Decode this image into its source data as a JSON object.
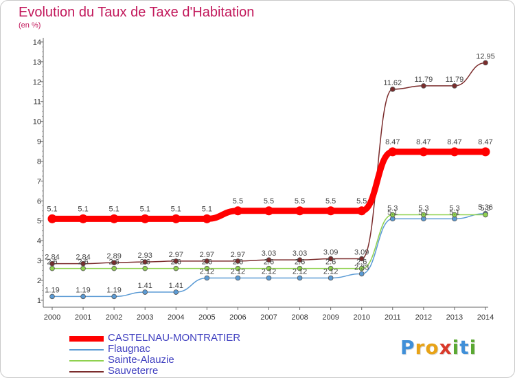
{
  "chart_data": {
    "type": "line",
    "title": "Evolution du Taux de Taxe d'Habitation",
    "unit_label": "(en %)",
    "x": [
      "2000",
      "2001",
      "2002",
      "2003",
      "2004",
      "2005",
      "2006",
      "2007",
      "2008",
      "2009",
      "2010",
      "2011",
      "2012",
      "2013",
      "2014"
    ],
    "y_ticks": [
      "1",
      "2",
      "3",
      "4",
      "5",
      "6",
      "7",
      "8",
      "9",
      "10",
      "11",
      "12",
      "13",
      "14"
    ],
    "ylim": [
      0.65,
      14
    ],
    "grid": false,
    "legend_position": "bottom-left",
    "series": [
      {
        "name": "Flaugnac",
        "color": "#5b9bd5",
        "values": [
          1.19,
          1.19,
          1.19,
          1.41,
          1.41,
          2.12,
          2.12,
          2.12,
          2.12,
          2.12,
          2.33,
          5.1,
          5.1,
          5.1,
          5.36
        ],
        "labels": [
          "1.19",
          "1.19",
          "1.19",
          "1.41",
          "1.41",
          "2.12",
          "2.12",
          "2.12",
          "2.12",
          "2.12",
          "2.33",
          "5.1",
          "5.1",
          "5.1",
          "5.36"
        ]
      },
      {
        "name": "Sainte-Alauzie",
        "color": "#8fd14f",
        "values": [
          2.6,
          2.6,
          2.6,
          2.6,
          2.6,
          2.6,
          2.6,
          2.6,
          2.6,
          2.6,
          2.6,
          5.3,
          5.3,
          5.3,
          5.3
        ],
        "labels": [
          "2.6",
          "2.6",
          "2.6",
          "2.6",
          "2.6",
          "2.6",
          "2.6",
          "2.6",
          "2.6",
          "2.6",
          "2.6",
          "5.3",
          "5.3",
          "5.3",
          "5.3"
        ]
      },
      {
        "name": "Sauveterre",
        "color": "#7b2c2c",
        "values": [
          2.84,
          2.84,
          2.89,
          2.93,
          2.97,
          2.97,
          2.97,
          3.03,
          3.03,
          3.09,
          3.09,
          11.62,
          11.79,
          11.79,
          12.95
        ],
        "labels": [
          "2.84",
          "2.84",
          "2.89",
          "2.93",
          "2.97",
          "2.97",
          "2.97",
          "3.03",
          "3.03",
          "3.09",
          "3.09",
          "11.62",
          "11.79",
          "11.79",
          "12.95"
        ]
      },
      {
        "name": "CASTELNAU-MONTRATIER",
        "color": "#ff0000",
        "values": [
          5.1,
          5.1,
          5.1,
          5.1,
          5.1,
          5.1,
          5.5,
          5.5,
          5.5,
          5.5,
          5.5,
          8.47,
          8.47,
          8.47,
          8.47
        ],
        "labels": [
          "5.1",
          "5.1",
          "5.1",
          "5.1",
          "5.1",
          "5.1",
          "5.5",
          "5.5",
          "5.5",
          "5.5",
          "5.5",
          "8.47",
          "8.47",
          "8.47",
          "8.47"
        ]
      }
    ]
  },
  "legend": {
    "items": [
      {
        "label": "CASTELNAU-MONTRATIER",
        "color": "#ff0000"
      },
      {
        "label": "Flaugnac",
        "color": "#5b9bd5"
      },
      {
        "label": "Sainte-Alauzie",
        "color": "#8fd14f"
      },
      {
        "label": "Sauveterre",
        "color": "#7b2c2c"
      }
    ]
  },
  "logo": {
    "letters": [
      "P",
      "r",
      "o",
      "x",
      "i",
      "t",
      "i"
    ],
    "colors": [
      "#3f8fd8",
      "#e8a317",
      "#e8a317",
      "#d93a2b",
      "#5aa832",
      "#3f8fd8",
      "#5aa832"
    ]
  }
}
